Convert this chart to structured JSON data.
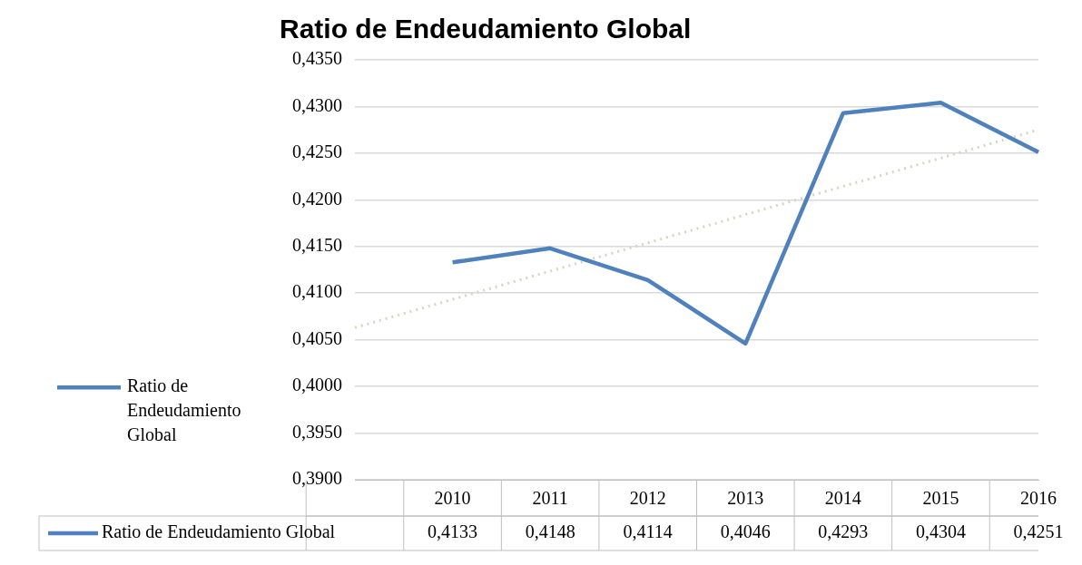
{
  "chart_data": {
    "type": "line",
    "title": "Ratio de Endeudamiento Global",
    "categories": [
      null,
      "2010",
      "2011",
      "2012",
      "2013",
      "2014",
      "2015",
      "2016"
    ],
    "series": [
      {
        "name": "Ratio de Endeudamiento Global",
        "color": "#4f81bd",
        "values": [
          null,
          0.4133,
          0.4148,
          0.4114,
          0.4046,
          0.4293,
          0.4304,
          0.4251
        ],
        "value_labels": [
          null,
          "0,4133",
          "0,4148",
          "0,4114",
          "0,4046",
          "0,4293",
          "0,4304",
          "0,4251"
        ]
      },
      {
        "type": "line",
        "color": "#d8d5bf",
        "line_style": "dotted",
        "values": [
          0.4063,
          null,
          null,
          null,
          null,
          null,
          null,
          0.4275
        ]
      }
    ],
    "ylim": [
      0.39,
      0.435
    ],
    "yticks": [
      {
        "value": 0.39,
        "label": "0,3900"
      },
      {
        "value": 0.395,
        "label": "0,3950"
      },
      {
        "value": 0.4,
        "label": "0,4000"
      },
      {
        "value": 0.405,
        "label": "0,4050"
      },
      {
        "value": 0.41,
        "label": "0,4100"
      },
      {
        "value": 0.415,
        "label": "0,4150"
      },
      {
        "value": 0.42,
        "label": "0,4200"
      },
      {
        "value": 0.425,
        "label": "0,4250"
      },
      {
        "value": 0.43,
        "label": "0,4300"
      },
      {
        "value": 0.435,
        "label": "0,4350"
      }
    ],
    "grid": "y",
    "legend": "left",
    "marker": "none"
  }
}
